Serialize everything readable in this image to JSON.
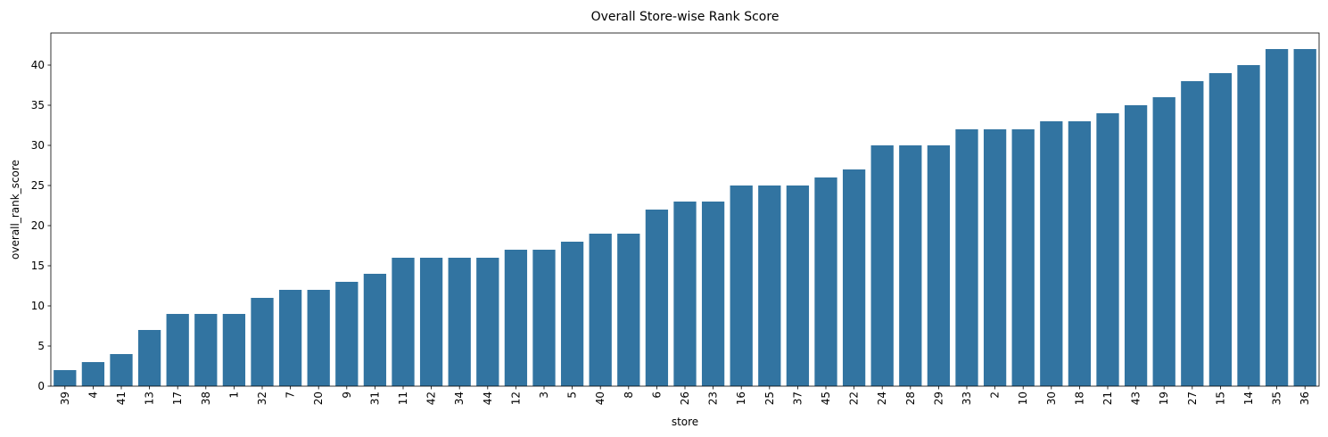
{
  "chart_data": {
    "type": "bar",
    "title": "Overall Store-wise Rank Score",
    "xlabel": "store",
    "ylabel": "overall_rank_score",
    "ylim": [
      0,
      44
    ],
    "yticks": [
      0,
      5,
      10,
      15,
      20,
      25,
      30,
      35,
      40
    ],
    "categories": [
      "39",
      "4",
      "41",
      "13",
      "17",
      "38",
      "1",
      "32",
      "7",
      "20",
      "9",
      "31",
      "11",
      "42",
      "34",
      "44",
      "12",
      "3",
      "5",
      "40",
      "8",
      "6",
      "26",
      "23",
      "16",
      "25",
      "37",
      "45",
      "22",
      "24",
      "28",
      "29",
      "33",
      "2",
      "10",
      "30",
      "18",
      "21",
      "43",
      "19",
      "27",
      "15",
      "14",
      "35",
      "36"
    ],
    "values": [
      2,
      3,
      4,
      7,
      9,
      9,
      9,
      11,
      12,
      12,
      13,
      14,
      16,
      16,
      16,
      16,
      17,
      17,
      18,
      19,
      19,
      22,
      23,
      23,
      25,
      25,
      25,
      26,
      27,
      30,
      30,
      30,
      32,
      32,
      32,
      33,
      33,
      34,
      35,
      36,
      38,
      39,
      40,
      42,
      42
    ],
    "bar_color": "#3274a1",
    "grid": false,
    "legend": "none"
  }
}
